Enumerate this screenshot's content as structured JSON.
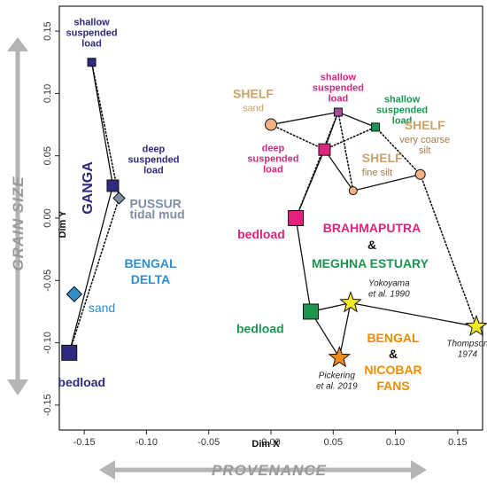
{
  "chart_data": {
    "type": "scatter",
    "xlabel": "Dim X",
    "ylabel": "Dim Y",
    "xlim": [
      -0.17,
      0.17
    ],
    "ylim": [
      -0.17,
      0.17
    ],
    "x_ticks": [
      -0.15,
      -0.1,
      -0.05,
      0.0,
      0.05,
      0.1,
      0.15
    ],
    "x_tick_labels": [
      "-0.15",
      "-0.10",
      "-0.05",
      "0.00",
      "0.05",
      "0.10",
      "0.15"
    ],
    "y_ticks": [
      -0.15,
      -0.1,
      -0.05,
      0.0,
      0.05,
      0.1,
      0.15
    ],
    "y_tick_labels": [
      "-0.15",
      "-0.10",
      "-0.05",
      "0.00",
      "0.05",
      "0.10",
      "0.15"
    ],
    "grid": false,
    "arrows": {
      "vertical": "GRAIN SIZE",
      "horizontal": "PROVENANCE"
    },
    "colors": {
      "ganga": "#2e2a7e",
      "pussur": "#7c8fa6",
      "bengal_delta": "#2f8fcc",
      "brahmaputra": "#e0237f",
      "brahmaputra_mid": "#a14b9c",
      "meghna": "#1a9650",
      "shelf": "#c9a36a",
      "shelf_text": "#a77a4a",
      "shelf_fill": "#f4b183",
      "fans_text": "#f08c00",
      "star_yellow": "#f5e82a",
      "star_orange": "#f28c1c"
    },
    "points": [
      {
        "id": "ganga-shallow",
        "x": -0.144,
        "y": 0.125,
        "marker": "square",
        "color": "#2e2a7e",
        "label": [
          "shallow",
          "suspended",
          "load"
        ]
      },
      {
        "id": "ganga-deep",
        "x": -0.127,
        "y": 0.026,
        "marker": "square",
        "color": "#2e2a7e",
        "label": [
          "deep",
          "suspended",
          "load"
        ]
      },
      {
        "id": "ganga-bedload",
        "x": -0.162,
        "y": -0.108,
        "marker": "square",
        "color": "#2e2a7e",
        "label": [
          "bedload"
        ]
      },
      {
        "id": "pussur-tidal-mud",
        "x": -0.122,
        "y": 0.016,
        "marker": "diamond",
        "color": "#7c8fa6",
        "label": [
          "PUSSUR",
          "tidal mud"
        ]
      },
      {
        "id": "delta-sand",
        "x": -0.158,
        "y": -0.061,
        "marker": "diamond",
        "color": "#2f8fcc",
        "label": [
          "sand"
        ]
      },
      {
        "id": "brahma-shallow",
        "x": 0.054,
        "y": 0.085,
        "marker": "square",
        "color": "#a14b9c",
        "label": [
          "shallow",
          "suspended",
          "load"
        ]
      },
      {
        "id": "brahma-deep",
        "x": 0.043,
        "y": 0.055,
        "marker": "square",
        "color": "#e0237f",
        "label": [
          "deep",
          "suspended",
          "load"
        ]
      },
      {
        "id": "brahma-bedload",
        "x": 0.02,
        "y": 0.0,
        "marker": "square",
        "color": "#e0237f",
        "label": [
          "bedload"
        ]
      },
      {
        "id": "meghna-shallow",
        "x": 0.084,
        "y": 0.073,
        "marker": "square",
        "color": "#1a9650",
        "label": [
          "shallow",
          "suspended",
          "load"
        ]
      },
      {
        "id": "meghna-bedload",
        "x": 0.032,
        "y": -0.075,
        "marker": "square",
        "color": "#1a9650",
        "label": [
          "bedload"
        ]
      },
      {
        "id": "shelf-sand",
        "x": 0.0,
        "y": 0.075,
        "marker": "circle",
        "color": "#f4b183",
        "label": [
          "SHELF",
          "sand"
        ]
      },
      {
        "id": "shelf-fine-silt",
        "x": 0.066,
        "y": 0.022,
        "marker": "circle",
        "color": "#f4b183",
        "label": [
          "SHELF",
          "fine silt"
        ]
      },
      {
        "id": "shelf-coarse-silt",
        "x": 0.12,
        "y": 0.035,
        "marker": "circle",
        "color": "#f4b183",
        "label": [
          "SHELF",
          "very coarse",
          "silt"
        ]
      },
      {
        "id": "fans-yokoyama",
        "x": 0.064,
        "y": -0.068,
        "marker": "star",
        "color": "#f5e82a",
        "label": [
          "Yokoyama",
          "et al. 1990"
        ]
      },
      {
        "id": "fans-pickering",
        "x": 0.055,
        "y": -0.112,
        "marker": "star",
        "color": "#f28c1c",
        "label": [
          "Pickering",
          "et al. 2019"
        ]
      },
      {
        "id": "fans-thompson",
        "x": 0.165,
        "y": -0.087,
        "marker": "star",
        "color": "#f5e82a",
        "label": [
          "Thompson",
          "1974"
        ]
      }
    ],
    "connections": [
      {
        "from": "ganga-shallow",
        "to": "ganga-deep",
        "style": "solid"
      },
      {
        "from": "ganga-deep",
        "to": "ganga-bedload",
        "style": "solid"
      },
      {
        "from": "ganga-shallow",
        "to": "pussur-tidal-mud",
        "style": "dotted"
      },
      {
        "from": "pussur-tidal-mud",
        "to": "ganga-bedload",
        "style": "dotted"
      },
      {
        "from": "shelf-sand",
        "to": "brahma-shallow",
        "style": "solid"
      },
      {
        "from": "brahma-shallow",
        "to": "brahma-deep",
        "style": "solid"
      },
      {
        "from": "brahma-shallow",
        "to": "meghna-shallow",
        "style": "solid"
      },
      {
        "from": "brahma-deep",
        "to": "shelf-fine-silt",
        "style": "solid"
      },
      {
        "from": "shelf-fine-silt",
        "to": "shelf-coarse-silt",
        "style": "solid"
      },
      {
        "from": "brahma-deep",
        "to": "brahma-bedload",
        "style": "solid"
      },
      {
        "from": "brahma-bedload",
        "to": "meghna-bedload",
        "style": "solid"
      },
      {
        "from": "meghna-bedload",
        "to": "fans-yokoyama",
        "style": "solid"
      },
      {
        "from": "meghna-bedload",
        "to": "fans-pickering",
        "style": "solid"
      },
      {
        "from": "fans-yokoyama",
        "to": "fans-pickering",
        "style": "solid"
      },
      {
        "from": "fans-yokoyama",
        "to": "fans-thompson",
        "style": "solid"
      },
      {
        "from": "shelf-sand",
        "to": "brahma-deep",
        "style": "dotted"
      },
      {
        "from": "brahma-shallow",
        "to": "shelf-fine-silt",
        "style": "dotted"
      },
      {
        "from": "brahma-deep",
        "to": "meghna-shallow",
        "style": "dotted"
      },
      {
        "from": "meghna-shallow",
        "to": "shelf-coarse-silt",
        "style": "dotted"
      },
      {
        "from": "shelf-coarse-silt",
        "to": "fans-thompson",
        "style": "dotted"
      },
      {
        "from": "brahma-bedload",
        "to": "brahma-shallow",
        "style": "dotted"
      }
    ],
    "region_labels": {
      "ganga": "GANGA",
      "bengal_delta": [
        "BENGAL",
        "DELTA"
      ],
      "brahmaputra": "BRAHMAPUTRA",
      "amp1": "&",
      "meghna_estuary": "MEGHNA ESTUARY",
      "bengal_nicobar_fans": [
        "BENGAL",
        "&",
        "NICOBAR",
        "FANS"
      ]
    }
  }
}
